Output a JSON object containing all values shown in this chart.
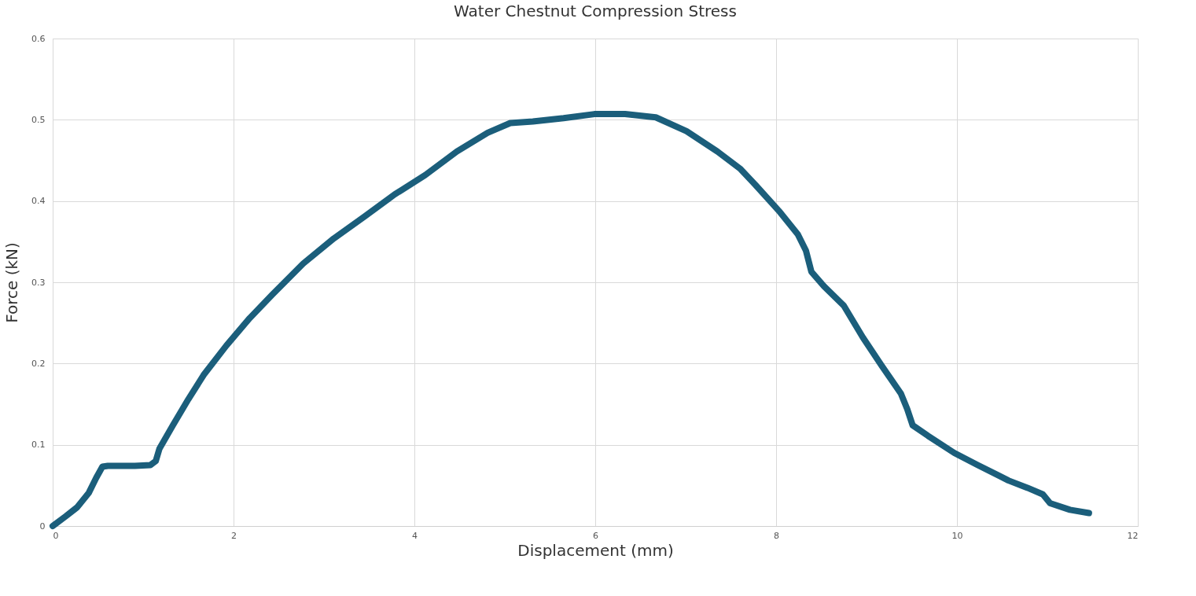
{
  "chart_data": {
    "type": "line",
    "title": "Water Chestnut Compression Stress",
    "xlabel": "Displacement (mm)",
    "ylabel": "Force (kN)",
    "x": [
      0,
      0.144,
      0.27,
      0.4,
      0.48,
      0.55,
      0.61,
      0.91,
      1.08,
      1.14,
      1.18,
      1.33,
      1.5,
      1.67,
      1.92,
      2.18,
      2.43,
      2.77,
      3.11,
      3.45,
      3.78,
      4.12,
      4.47,
      4.81,
      5.06,
      5.31,
      5.65,
      5.99,
      6.33,
      6.67,
      7.01,
      7.35,
      7.6,
      7.77,
      8.03,
      8.24,
      8.33,
      8.39,
      8.53,
      8.75,
      8.96,
      9.17,
      9.38,
      9.45,
      9.51,
      9.68,
      9.97,
      10.23,
      10.57,
      10.78,
      10.95,
      11.03,
      11.25,
      11.46
    ],
    "series": [
      {
        "color": "#1b5e7b",
        "values": [
          0,
          0.012,
          0.023,
          0.041,
          0.059,
          0.073,
          0.074,
          0.074,
          0.075,
          0.08,
          0.095,
          0.124,
          0.156,
          0.186,
          0.222,
          0.256,
          0.285,
          0.323,
          0.354,
          0.381,
          0.408,
          0.432,
          0.461,
          0.484,
          0.496,
          0.498,
          0.502,
          0.507,
          0.507,
          0.503,
          0.486,
          0.461,
          0.44,
          0.42,
          0.388,
          0.359,
          0.339,
          0.313,
          0.295,
          0.271,
          0.232,
          0.197,
          0.163,
          0.144,
          0.124,
          0.111,
          0.09,
          0.075,
          0.056,
          0.047,
          0.039,
          0.028,
          0.02,
          0.016
        ]
      }
    ],
    "xlim": [
      0,
      12
    ],
    "xticks": [
      0,
      2,
      4,
      6,
      8,
      10,
      12
    ],
    "ylim": [
      0,
      0.6
    ],
    "yticks": [
      0,
      0.1,
      0.2,
      0.3,
      0.4,
      0.5,
      0.6
    ],
    "grid": true,
    "line_style": "solid"
  }
}
